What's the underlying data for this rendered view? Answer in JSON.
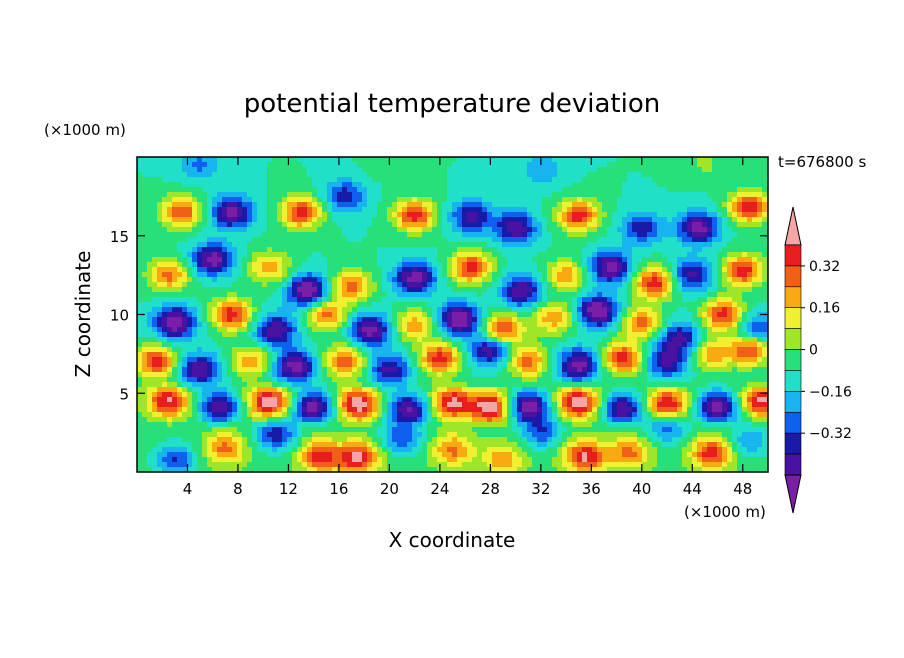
{
  "chart_data": {
    "type": "heatmap",
    "title": "potential temperature deviation",
    "xlabel": "X coordinate",
    "ylabel": "Z coordinate",
    "x_unit": "(×1000 m)",
    "y_unit": "(×1000 m)",
    "time_label": "t=676800 s",
    "xlim": [
      0,
      50
    ],
    "ylim": [
      0,
      20
    ],
    "x_ticks": [
      4,
      8,
      12,
      16,
      20,
      24,
      28,
      32,
      36,
      40,
      44,
      48
    ],
    "x_tick_labels": [
      "4",
      "8",
      "12",
      "16",
      "20",
      "24",
      "28",
      "32",
      "36",
      "40",
      "44",
      "48"
    ],
    "y_ticks": [
      5,
      10,
      15
    ],
    "y_tick_labels": [
      "5",
      "10",
      "15"
    ],
    "levels": [
      -0.48,
      -0.4,
      -0.32,
      -0.24,
      -0.16,
      -0.08,
      0,
      0.08,
      0.16,
      0.24,
      0.32,
      0.4,
      0.48
    ],
    "colorbar_tick_values": [
      0.32,
      0.16,
      0,
      -0.16,
      -0.32
    ],
    "colorbar_tick_labels": [
      "0.32",
      "0.16",
      "0",
      "−0.16",
      "−0.32"
    ],
    "colors": [
      "#7a1ea8",
      "#4a12a0",
      "#1a1aa8",
      "#1060f0",
      "#18b4f0",
      "#20e0c8",
      "#28e07a",
      "#a0e628",
      "#f0f030",
      "#f8aa10",
      "#f06018",
      "#e81e1e",
      "#f5a5a5"
    ],
    "layers": [
      {
        "zmin": 0,
        "zmax": 5,
        "base": 0.05,
        "blobs": [
          [
            3,
            0.8,
            -0.3
          ],
          [
            7,
            1.5,
            0.3
          ],
          [
            11,
            2.4,
            -0.35
          ],
          [
            14.5,
            1.0,
            0.4
          ],
          [
            17.5,
            0.9,
            0.45
          ],
          [
            21,
            2.2,
            -0.3
          ],
          [
            25,
            1.4,
            0.3
          ],
          [
            29,
            0.8,
            0.25
          ],
          [
            32,
            2.6,
            -0.3
          ],
          [
            35.5,
            1.0,
            0.45
          ],
          [
            39,
            1.2,
            0.3
          ],
          [
            42,
            2.8,
            -0.25
          ],
          [
            45.5,
            1.2,
            0.4
          ],
          [
            48.5,
            2.0,
            -0.2
          ]
        ]
      },
      {
        "zmin": 3.4,
        "zmax": 5.2,
        "base": 0,
        "blobs": [
          [
            2.5,
            4.5,
            0.45
          ],
          [
            6.5,
            4.1,
            -0.45
          ],
          [
            10.5,
            4.4,
            0.5
          ],
          [
            14,
            4.1,
            -0.5
          ],
          [
            17.5,
            4.3,
            0.5
          ],
          [
            21.5,
            4.0,
            -0.45
          ],
          [
            25,
            4.4,
            0.45
          ],
          [
            28,
            4.1,
            0.5
          ],
          [
            31,
            4.2,
            -0.5
          ],
          [
            35,
            4.4,
            0.5
          ],
          [
            38.5,
            4.0,
            -0.45
          ],
          [
            42,
            4.3,
            0.45
          ],
          [
            46,
            4.1,
            -0.5
          ],
          [
            49.5,
            4.5,
            0.45
          ]
        ]
      },
      {
        "zmin": 5,
        "zmax": 20,
        "base": 0,
        "blobs": [
          [
            3.5,
            16.5,
            0.4
          ],
          [
            7.5,
            16.5,
            -0.45
          ],
          [
            13,
            16.5,
            0.45
          ],
          [
            16.5,
            17.5,
            -0.3
          ],
          [
            22,
            16.3,
            0.45
          ],
          [
            26.5,
            16.2,
            -0.35
          ],
          [
            30,
            15.5,
            -0.4
          ],
          [
            35,
            16.3,
            0.45
          ],
          [
            40,
            15.5,
            -0.3
          ],
          [
            44.5,
            15.5,
            -0.45
          ],
          [
            48.5,
            16.8,
            0.45
          ],
          [
            2.5,
            12.5,
            0.35
          ],
          [
            6,
            13.5,
            -0.45
          ],
          [
            10.5,
            13.0,
            0.3
          ],
          [
            13.5,
            11.5,
            -0.5
          ],
          [
            17,
            11.8,
            0.35
          ],
          [
            22,
            12.3,
            -0.45
          ],
          [
            26.5,
            13.0,
            0.45
          ],
          [
            30.5,
            11.5,
            -0.4
          ],
          [
            34,
            12.5,
            0.3
          ],
          [
            37.5,
            13.0,
            -0.45
          ],
          [
            41,
            12.0,
            0.45
          ],
          [
            44,
            12.5,
            -0.35
          ],
          [
            48,
            12.8,
            0.45
          ],
          [
            3,
            9.5,
            -0.5
          ],
          [
            7.5,
            10,
            0.45
          ],
          [
            11,
            9.0,
            -0.4
          ],
          [
            15,
            10,
            0.35
          ],
          [
            18.5,
            9.0,
            -0.45
          ],
          [
            22,
            9.3,
            0.3
          ],
          [
            25.5,
            9.7,
            -0.5
          ],
          [
            29,
            9.0,
            0.45
          ],
          [
            33,
            9.8,
            0.3
          ],
          [
            36.5,
            10.2,
            -0.5
          ],
          [
            40,
            9.5,
            0.35
          ],
          [
            43,
            8.5,
            -0.35
          ],
          [
            46.5,
            10,
            0.45
          ],
          [
            49,
            9.0,
            -0.3
          ],
          [
            1.5,
            7.0,
            0.45
          ],
          [
            5,
            6.5,
            -0.4
          ],
          [
            9,
            7.0,
            0.3
          ],
          [
            12.5,
            6.7,
            -0.45
          ],
          [
            16.5,
            7.0,
            0.4
          ],
          [
            20,
            6.5,
            -0.35
          ],
          [
            24,
            7.2,
            0.45
          ],
          [
            28,
            7.8,
            -0.4
          ],
          [
            31,
            7.0,
            0.35
          ],
          [
            35,
            6.8,
            -0.45
          ],
          [
            38.5,
            7.2,
            0.45
          ],
          [
            42,
            7.0,
            -0.35
          ],
          [
            45.5,
            7.5,
            0.3
          ],
          [
            48.5,
            7.8,
            0.45
          ],
          [
            5,
            19.5,
            -0.18
          ],
          [
            20,
            19.5,
            0.05
          ],
          [
            32,
            19.2,
            -0.15
          ],
          [
            45,
            19.6,
            0.1
          ]
        ]
      }
    ]
  }
}
